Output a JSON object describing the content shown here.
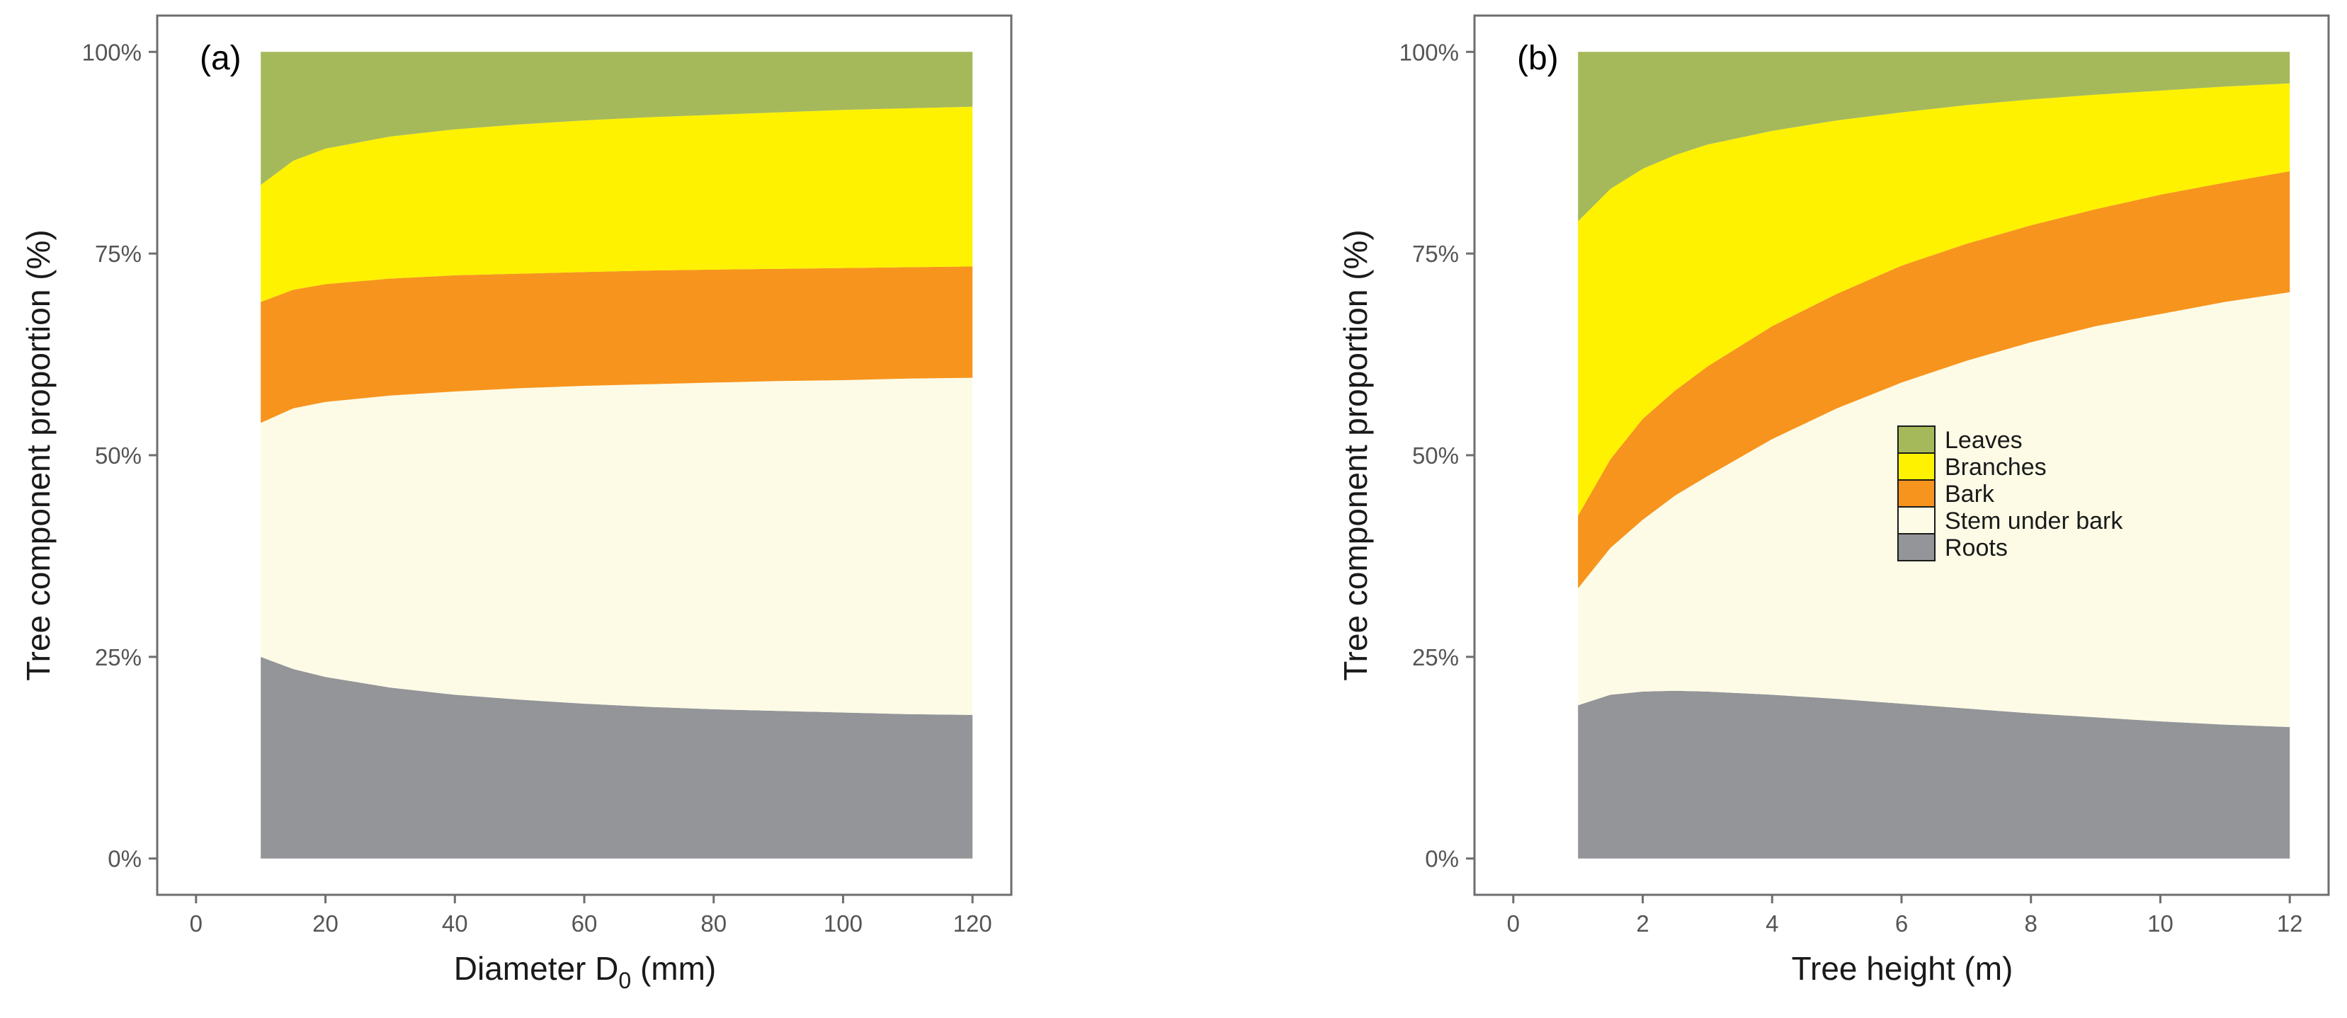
{
  "colors": {
    "Leaves": "#a6b95a",
    "Branches": "#fff200",
    "Bark": "#f7941d",
    "Stem under bark": "#fdfbe6",
    "Roots": "#939598",
    "frame": "#6d6e71",
    "tick_text": "#555555"
  },
  "chart_data": [
    {
      "type": "area",
      "stacked": true,
      "panel_label": "(a)",
      "xlabel": "Diameter D",
      "xlabel_subscript": "0",
      "xlabel_unit": " (mm)",
      "ylabel": "Tree component proportion (%)",
      "xlim": [
        -6,
        126
      ],
      "ylim": [
        -0.045,
        1.045
      ],
      "xticks": [
        0,
        20,
        40,
        60,
        80,
        100,
        120
      ],
      "yticks": [
        0,
        0.25,
        0.5,
        0.75,
        1.0
      ],
      "ytick_labels": [
        "0%",
        "25%",
        "50%",
        "75%",
        "100%"
      ],
      "x": [
        10,
        15,
        20,
        30,
        40,
        50,
        60,
        70,
        80,
        90,
        100,
        110,
        120
      ],
      "series": [
        {
          "name": "Roots",
          "cumulative": [
            0.25,
            0.235,
            0.225,
            0.212,
            0.203,
            0.197,
            0.192,
            0.188,
            0.185,
            0.183,
            0.181,
            0.179,
            0.178
          ]
        },
        {
          "name": "Stem under bark",
          "cumulative": [
            0.54,
            0.558,
            0.566,
            0.574,
            0.579,
            0.583,
            0.586,
            0.588,
            0.59,
            0.592,
            0.593,
            0.595,
            0.596
          ]
        },
        {
          "name": "Bark",
          "cumulative": [
            0.69,
            0.705,
            0.712,
            0.719,
            0.723,
            0.725,
            0.727,
            0.729,
            0.73,
            0.731,
            0.732,
            0.733,
            0.734
          ]
        },
        {
          "name": "Branches",
          "cumulative": [
            0.835,
            0.865,
            0.88,
            0.895,
            0.904,
            0.91,
            0.915,
            0.919,
            0.922,
            0.925,
            0.928,
            0.93,
            0.932
          ]
        },
        {
          "name": "Leaves",
          "cumulative": [
            1,
            1,
            1,
            1,
            1,
            1,
            1,
            1,
            1,
            1,
            1,
            1,
            1
          ]
        }
      ],
      "legend": false
    },
    {
      "type": "area",
      "stacked": true,
      "panel_label": "(b)",
      "xlabel": "Tree height (m)",
      "ylabel": "Tree component proportion (%)",
      "xlim": [
        -0.6,
        12.6
      ],
      "ylim": [
        -0.045,
        1.045
      ],
      "xticks": [
        0,
        2,
        4,
        6,
        8,
        10,
        12
      ],
      "yticks": [
        0,
        0.25,
        0.5,
        0.75,
        1.0
      ],
      "ytick_labels": [
        "0%",
        "25%",
        "50%",
        "75%",
        "100%"
      ],
      "x": [
        1,
        1.5,
        2,
        2.5,
        3,
        4,
        5,
        6,
        7,
        8,
        9,
        10,
        11,
        12
      ],
      "series": [
        {
          "name": "Roots",
          "cumulative": [
            0.19,
            0.203,
            0.207,
            0.208,
            0.207,
            0.203,
            0.198,
            0.192,
            0.186,
            0.18,
            0.175,
            0.17,
            0.166,
            0.163
          ]
        },
        {
          "name": "Stem under bark",
          "cumulative": [
            0.335,
            0.385,
            0.42,
            0.45,
            0.474,
            0.52,
            0.558,
            0.59,
            0.617,
            0.64,
            0.66,
            0.675,
            0.69,
            0.702
          ]
        },
        {
          "name": "Bark",
          "cumulative": [
            0.425,
            0.495,
            0.545,
            0.58,
            0.61,
            0.66,
            0.7,
            0.735,
            0.762,
            0.785,
            0.805,
            0.823,
            0.838,
            0.852
          ]
        },
        {
          "name": "Branches",
          "cumulative": [
            0.79,
            0.83,
            0.855,
            0.872,
            0.885,
            0.902,
            0.915,
            0.925,
            0.934,
            0.941,
            0.947,
            0.952,
            0.957,
            0.961
          ]
        },
        {
          "name": "Leaves",
          "cumulative": [
            1,
            1,
            1,
            1,
            1,
            1,
            1,
            1,
            1,
            1,
            1,
            1,
            1,
            1
          ]
        }
      ],
      "legend": true,
      "legend_position": "right",
      "legend_entries": [
        "Leaves",
        "Branches",
        "Bark",
        "Stem under bark",
        "Roots"
      ]
    }
  ]
}
